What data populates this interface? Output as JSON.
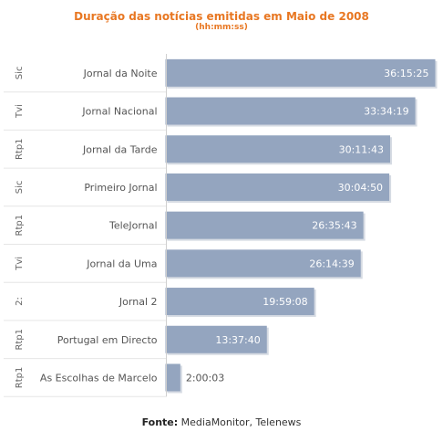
{
  "chart_data": {
    "type": "bar",
    "orientation": "horizontal",
    "title": "Duração das notícias emitidas em Maio de 2008",
    "subtitle": "(hh:mm:ss)",
    "categories": [
      "Jornal da Noite",
      "Jornal Nacional",
      "Jornal da Tarde",
      "Primeiro Jornal",
      "TeleJornal",
      "Jornal da Uma",
      "Jornal 2",
      "Portugal em Directo",
      "As Escolhas de Marcelo"
    ],
    "channels": [
      "Sic",
      "Tvi",
      "Rtp1",
      "Sic",
      "Rtp1",
      "Tvi",
      "2:",
      "Rtp1",
      "Rtp1"
    ],
    "values": [
      "36:15:25",
      "33:34:19",
      "30:11:43",
      "30:04:50",
      "26:35:43",
      "26:14:39",
      "19:59:08",
      "13:37:40",
      "2:00:03"
    ],
    "value_seconds": [
      130525,
      120859,
      108703,
      108290,
      95743,
      94479,
      71948,
      49060,
      7203
    ],
    "xlim_seconds": [
      0,
      130525
    ],
    "bar_color": "#94a5bf",
    "grid": false
  },
  "footer": {
    "label": "Fonte:",
    "text": "MediaMonitor, Telenews"
  }
}
